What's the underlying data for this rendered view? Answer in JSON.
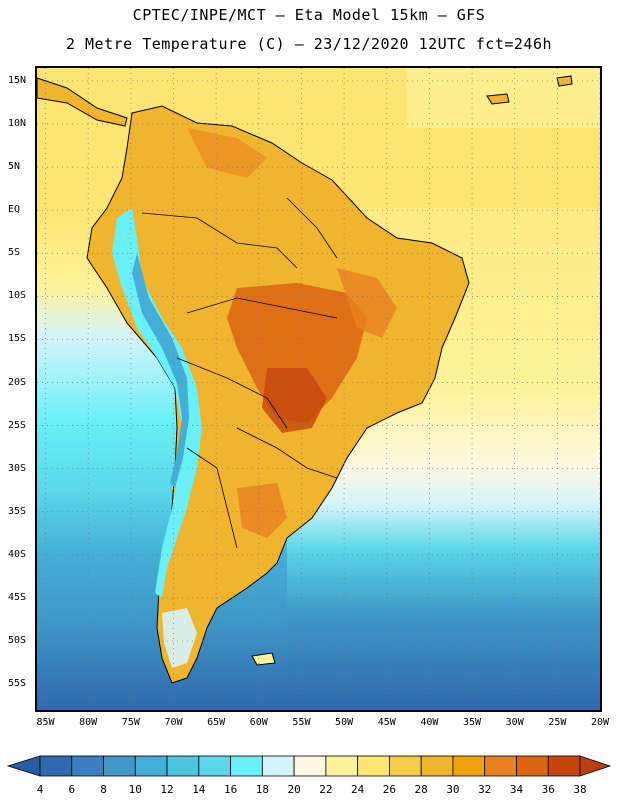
{
  "title_line1": "CPTEC/INPE/MCT –  Eta Model 15km – GFS",
  "title_line2": "2 Metre Temperature (C) – 23/12/2020 12UTC fct=246h",
  "map": {
    "variable": "2 Metre Temperature",
    "units": "C",
    "lon_range": [
      -86,
      -20
    ],
    "lat_range": [
      16.5,
      -58
    ],
    "lat_ticks": [
      {
        "value": 15,
        "label": "15N"
      },
      {
        "value": 10,
        "label": "10N"
      },
      {
        "value": 5,
        "label": "5N"
      },
      {
        "value": 0,
        "label": "EQ"
      },
      {
        "value": -5,
        "label": "5S"
      },
      {
        "value": -10,
        "label": "10S"
      },
      {
        "value": -15,
        "label": "15S"
      },
      {
        "value": -20,
        "label": "20S"
      },
      {
        "value": -25,
        "label": "25S"
      },
      {
        "value": -30,
        "label": "30S"
      },
      {
        "value": -35,
        "label": "35S"
      },
      {
        "value": -40,
        "label": "40S"
      },
      {
        "value": -45,
        "label": "45S"
      },
      {
        "value": -50,
        "label": "50S"
      },
      {
        "value": -55,
        "label": "55S"
      }
    ],
    "lon_ticks": [
      {
        "value": -85,
        "label": "85W"
      },
      {
        "value": -80,
        "label": "80W"
      },
      {
        "value": -75,
        "label": "75W"
      },
      {
        "value": -70,
        "label": "70W"
      },
      {
        "value": -65,
        "label": "65W"
      },
      {
        "value": -60,
        "label": "60W"
      },
      {
        "value": -55,
        "label": "55W"
      },
      {
        "value": -50,
        "label": "50W"
      },
      {
        "value": -45,
        "label": "45W"
      },
      {
        "value": -40,
        "label": "40W"
      },
      {
        "value": -35,
        "label": "35W"
      },
      {
        "value": -30,
        "label": "30W"
      },
      {
        "value": -25,
        "label": "25W"
      },
      {
        "value": -20,
        "label": "20W"
      }
    ]
  },
  "legend": {
    "levels": [
      "4",
      "6",
      "8",
      "10",
      "12",
      "14",
      "16",
      "18",
      "20",
      "22",
      "24",
      "26",
      "28",
      "30",
      "32",
      "34",
      "36",
      "38"
    ],
    "colors": [
      "#2f69ae",
      "#3a7fbf",
      "#3f98c8",
      "#45aed6",
      "#4fc4de",
      "#5ad7e8",
      "#6af0f8",
      "#d4f4fb",
      "#fdf8e1",
      "#fef39a",
      "#fde572",
      "#f7cc4b",
      "#f0b42e",
      "#f0a310",
      "#e88220",
      "#dd6412",
      "#c4460c"
    ]
  }
}
